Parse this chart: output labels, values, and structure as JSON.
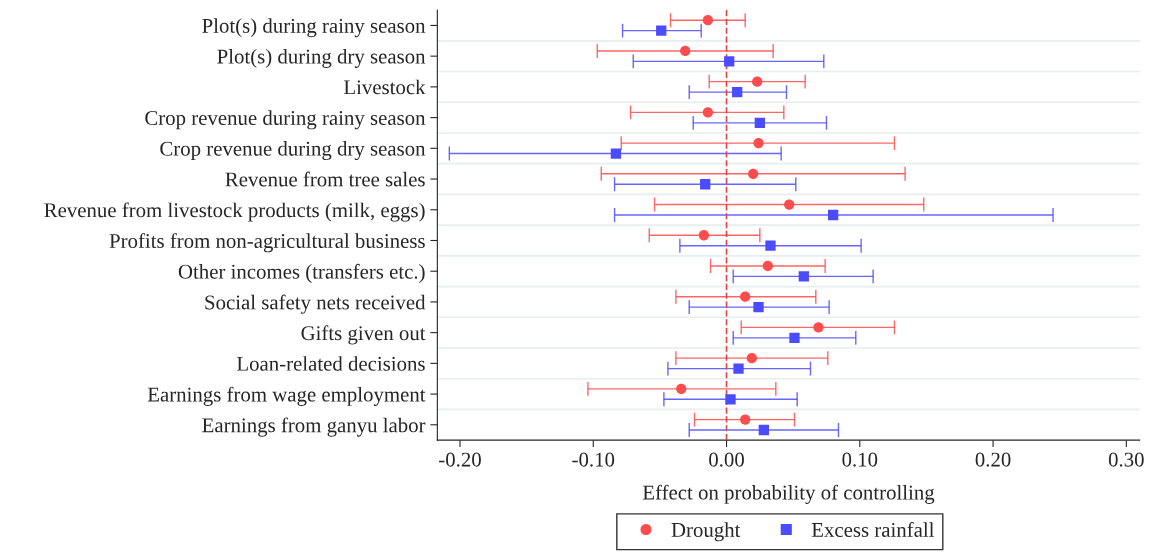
{
  "chart_data": {
    "type": "scatter",
    "orientation": "horizontal",
    "xlabel": "Effect on probability of controlling",
    "categories": [
      "Plot(s) during rainy season",
      "Plot(s) during dry season",
      "Livestock",
      "Crop revenue during rainy season",
      "Crop revenue during dry season",
      "Revenue from tree sales",
      "Revenue from livestock products (milk, eggs)",
      "Profits from non-agricultural business",
      "Other incomes (transfers etc.)",
      "Social safety nets received",
      "Gifts given out",
      "Loan-related decisions",
      "Earnings from wage employment",
      "Earnings from ganyu labor"
    ],
    "series": [
      {
        "name": "Drought",
        "color": "#ff4c4c",
        "marker": "circle",
        "values": [
          -0.014,
          -0.031,
          0.023,
          -0.014,
          0.024,
          0.02,
          0.047,
          -0.017,
          0.031,
          0.014,
          0.069,
          0.019,
          -0.034,
          0.014
        ],
        "errors": [
          [
            -0.042,
            0.014
          ],
          [
            -0.097,
            0.035
          ],
          [
            -0.013,
            0.059
          ],
          [
            -0.072,
            0.043
          ],
          [
            -0.079,
            0.126
          ],
          [
            -0.094,
            0.134
          ],
          [
            -0.054,
            0.148
          ],
          [
            -0.058,
            0.025
          ],
          [
            -0.012,
            0.074
          ],
          [
            -0.038,
            0.067
          ],
          [
            0.011,
            0.126
          ],
          [
            -0.038,
            0.076
          ],
          [
            -0.104,
            0.037
          ],
          [
            -0.024,
            0.051
          ]
        ]
      },
      {
        "name": "Excess rainfall",
        "color": "#4c4cff",
        "marker": "square",
        "values": [
          -0.049,
          0.002,
          0.008,
          0.025,
          -0.083,
          -0.016,
          0.08,
          0.033,
          0.058,
          0.024,
          0.051,
          0.009,
          0.003,
          0.028
        ],
        "errors": [
          [
            -0.078,
            -0.019
          ],
          [
            -0.07,
            0.073
          ],
          [
            -0.028,
            0.045
          ],
          [
            -0.025,
            0.075
          ],
          [
            -0.208,
            0.041
          ],
          [
            -0.084,
            0.052
          ],
          [
            -0.084,
            0.245
          ],
          [
            -0.035,
            0.101
          ],
          [
            0.005,
            0.11
          ],
          [
            -0.028,
            0.077
          ],
          [
            0.005,
            0.097
          ],
          [
            -0.044,
            0.063
          ],
          [
            -0.047,
            0.053
          ],
          [
            -0.028,
            0.084
          ]
        ]
      }
    ],
    "xlim": [
      -0.217,
      0.31
    ],
    "xticks": [
      {
        "value": -0.2,
        "label": "-0.20"
      },
      {
        "value": -0.1,
        "label": "-0.10"
      },
      {
        "value": 0,
        "label": "0.00"
      },
      {
        "value": 0.1,
        "label": "0.10"
      },
      {
        "value": 0.2,
        "label": "0.20"
      },
      {
        "value": 0.3,
        "label": "0.30"
      }
    ],
    "ref_lines": [
      {
        "axis": "x",
        "value": 0,
        "color": "#e04848",
        "line_style": "dashed"
      }
    ],
    "grid": "y",
    "legend": "bottom"
  }
}
